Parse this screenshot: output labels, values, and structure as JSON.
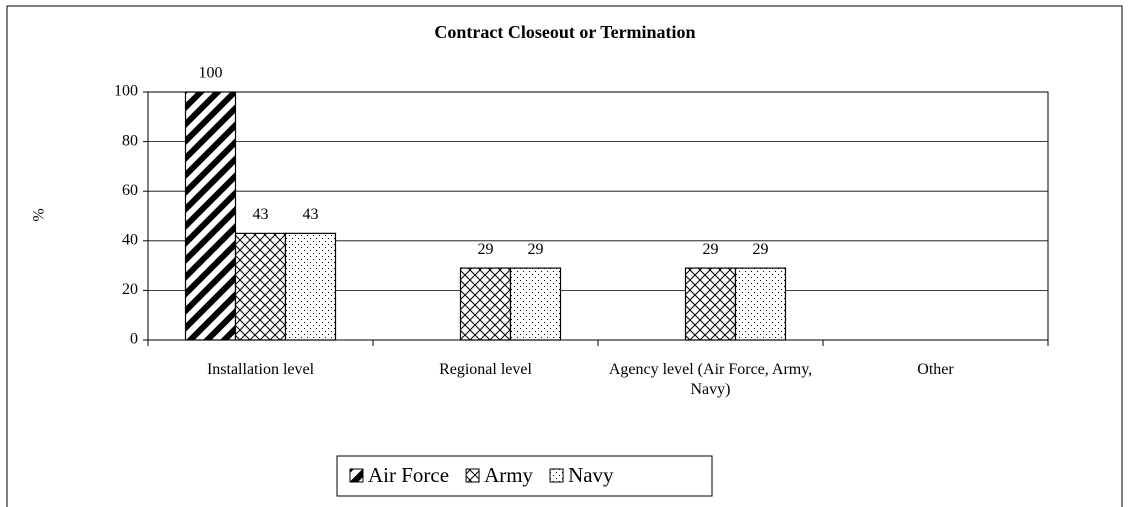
{
  "chart_data": {
    "type": "bar",
    "title": "Contract Closeout or Termination",
    "y_label": "%",
    "categories": [
      "Installation level",
      "Regional level",
      "Agency level (Air Force, Army, Navy)",
      "Other"
    ],
    "series": [
      {
        "name": "Air Force",
        "color": "#000000",
        "values": [
          100,
          null,
          null,
          null
        ]
      },
      {
        "name": "Army",
        "color": "#000000",
        "values": [
          43,
          29,
          29,
          null
        ]
      },
      {
        "name": "Navy",
        "color": "#000000",
        "values": [
          43,
          29,
          29,
          null
        ]
      }
    ],
    "ylim": [
      0,
      100
    ],
    "yticks": [
      0,
      20,
      40,
      60,
      80,
      100
    ],
    "grid": true,
    "legend": "bottom"
  }
}
